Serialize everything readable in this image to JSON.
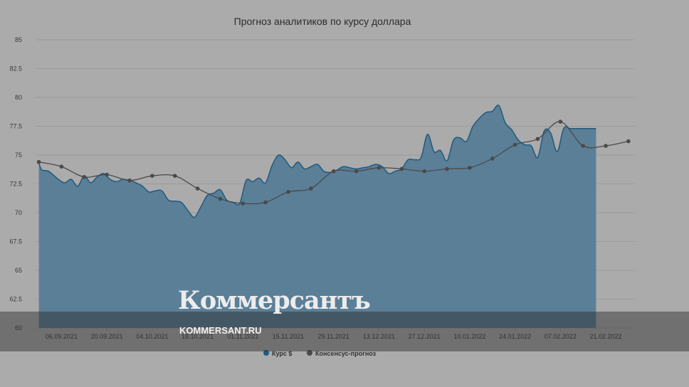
{
  "chart_data": {
    "type": "area",
    "title": "Прогноз аналитиков по курсу доллара",
    "ylim": [
      60,
      85
    ],
    "yticks": [
      "60",
      "62.5",
      "65",
      "67.5",
      "70",
      "72.5",
      "75",
      "77.5",
      "80",
      "82.5",
      "85"
    ],
    "xticks": [
      "06.09.2021",
      "20.09.2021",
      "04.10.2021",
      "18.10.2021",
      "01.11.2021",
      "15.11.2021",
      "29.11.2021",
      "13.12.2021",
      "27.12.2021",
      "10.01.2022",
      "24.01.2022",
      "07.02.2022",
      "21.02.2022"
    ],
    "grid": true,
    "legend_placement": "bottom",
    "series": [
      {
        "name": "Курс $",
        "color": "#1f5a80",
        "x": [
          "2021-08-30",
          "2021-08-31",
          "2021-09-02",
          "2021-09-05",
          "2021-09-07",
          "2021-09-09",
          "2021-09-11",
          "2021-09-13",
          "2021-09-15",
          "2021-09-17",
          "2021-09-19",
          "2021-09-21",
          "2021-09-23",
          "2021-09-25",
          "2021-09-27",
          "2021-09-29",
          "2021-10-01",
          "2021-10-03",
          "2021-10-05",
          "2021-10-07",
          "2021-10-09",
          "2021-10-11",
          "2021-10-13",
          "2021-10-15",
          "2021-10-17",
          "2021-10-19",
          "2021-10-21",
          "2021-10-23",
          "2021-10-25",
          "2021-10-27",
          "2021-10-29",
          "2021-10-31",
          "2021-11-02",
          "2021-11-04",
          "2021-11-06",
          "2021-11-08",
          "2021-11-10",
          "2021-11-12",
          "2021-11-14",
          "2021-11-16",
          "2021-11-18",
          "2021-11-20",
          "2021-11-22",
          "2021-11-24",
          "2021-11-26",
          "2021-11-28",
          "2021-11-30",
          "2021-12-02",
          "2021-12-04",
          "2021-12-06",
          "2021-12-08",
          "2021-12-10",
          "2021-12-12",
          "2021-12-14",
          "2021-12-16",
          "2021-12-18",
          "2021-12-20",
          "2021-12-22",
          "2021-12-24",
          "2021-12-26",
          "2021-12-28",
          "2021-12-30",
          "2022-01-01",
          "2022-01-03",
          "2022-01-05",
          "2022-01-07",
          "2022-01-09",
          "2022-01-11",
          "2022-01-13",
          "2022-01-15",
          "2022-01-17",
          "2022-01-19",
          "2022-01-21",
          "2022-01-23",
          "2022-01-25",
          "2022-01-27",
          "2022-01-29",
          "2022-01-31",
          "2022-02-02",
          "2022-02-04",
          "2022-02-06",
          "2022-02-08",
          "2022-02-10",
          "2022-02-12",
          "2022-02-14",
          "2022-02-16",
          "2022-02-18"
        ],
        "values": [
          74.3,
          73.7,
          73.6,
          72.9,
          72.6,
          72.9,
          72.3,
          73.2,
          72.6,
          73.1,
          73.4,
          72.9,
          72.7,
          72.9,
          72.8,
          72.6,
          72.3,
          71.8,
          71.9,
          71.9,
          71.1,
          71.0,
          70.9,
          70.2,
          69.6,
          70.5,
          71.5,
          71.7,
          72.0,
          71.1,
          70.9,
          70.8,
          72.8,
          72.7,
          73.0,
          72.6,
          74.1,
          75.0,
          74.6,
          73.9,
          74.4,
          73.8,
          74.0,
          74.2,
          73.6,
          73.5,
          73.7,
          74.0,
          73.9,
          73.8,
          73.9,
          74.0,
          74.2,
          74.0,
          73.4,
          73.6,
          73.8,
          74.6,
          74.6,
          74.8,
          76.8,
          75.3,
          75.4,
          74.5,
          76.3,
          76.5,
          76.2,
          77.5,
          78.2,
          78.7,
          78.8,
          79.3,
          77.8,
          77.2,
          76.3,
          75.9,
          75.8,
          74.8,
          77.1,
          76.9,
          75.3,
          77.3,
          77.3,
          77.3,
          77.3,
          77.3,
          77.3
        ]
      },
      {
        "name": "Консенсус-прогноз",
        "color": "#4a4a4a",
        "x": [
          "2021-08-30",
          "2021-09-06",
          "2021-09-13",
          "2021-09-20",
          "2021-09-27",
          "2021-10-04",
          "2021-10-11",
          "2021-10-18",
          "2021-10-25",
          "2021-11-01",
          "2021-11-08",
          "2021-11-15",
          "2021-11-22",
          "2021-11-29",
          "2021-12-06",
          "2021-12-13",
          "2021-12-20",
          "2021-12-27",
          "2022-01-03",
          "2022-01-10",
          "2022-01-17",
          "2022-01-24",
          "2022-01-31",
          "2022-02-07",
          "2022-02-14",
          "2022-02-21",
          "2022-02-28"
        ],
        "values": [
          74.4,
          74.0,
          73.1,
          73.3,
          72.8,
          73.2,
          73.2,
          72.1,
          71.2,
          70.8,
          70.9,
          71.8,
          72.1,
          73.6,
          73.6,
          73.9,
          73.8,
          73.6,
          73.8,
          73.9,
          74.7,
          75.9,
          76.4,
          77.9,
          75.8,
          75.8,
          76.2
        ]
      }
    ]
  },
  "watermark": {
    "brand": "Коммерсантъ",
    "site": "KOMMERSANT.RU"
  }
}
